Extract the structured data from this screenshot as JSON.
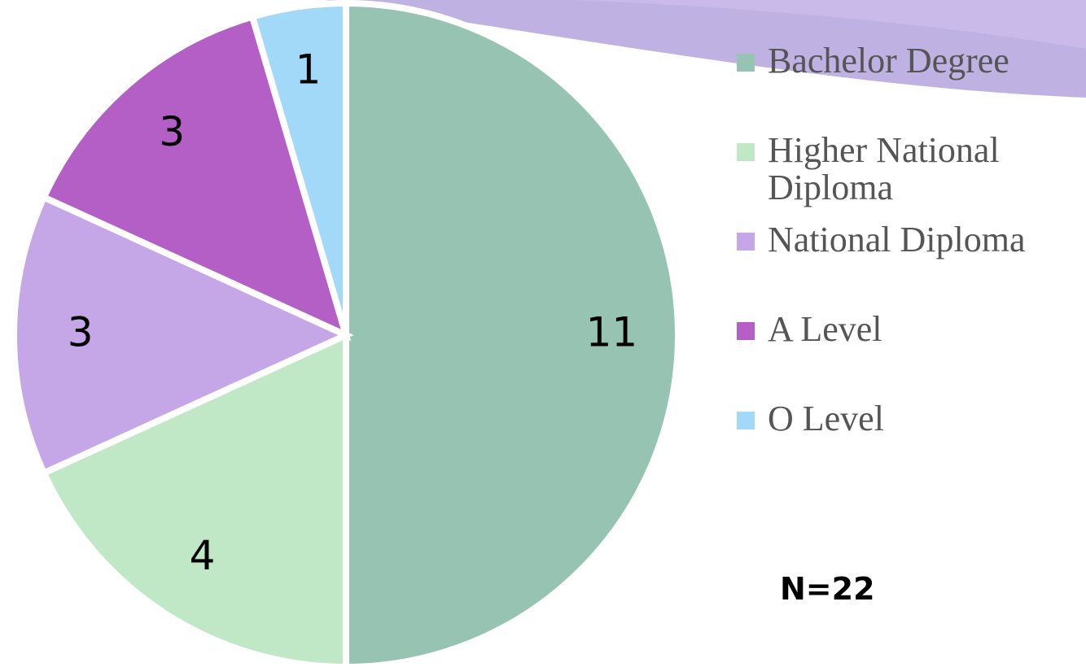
{
  "chart_data": {
    "type": "pie",
    "categories": [
      "Bachelor Degree",
      "Higher National Diploma",
      "National Diploma",
      "A Level",
      "O Level"
    ],
    "values": [
      11,
      4,
      3,
      3,
      1
    ],
    "colors": [
      "#97c4b2",
      "#c1e8c6",
      "#c5a6e6",
      "#b35fc6",
      "#a2d8f8"
    ],
    "legend": "right",
    "annotation": "N=22"
  }
}
